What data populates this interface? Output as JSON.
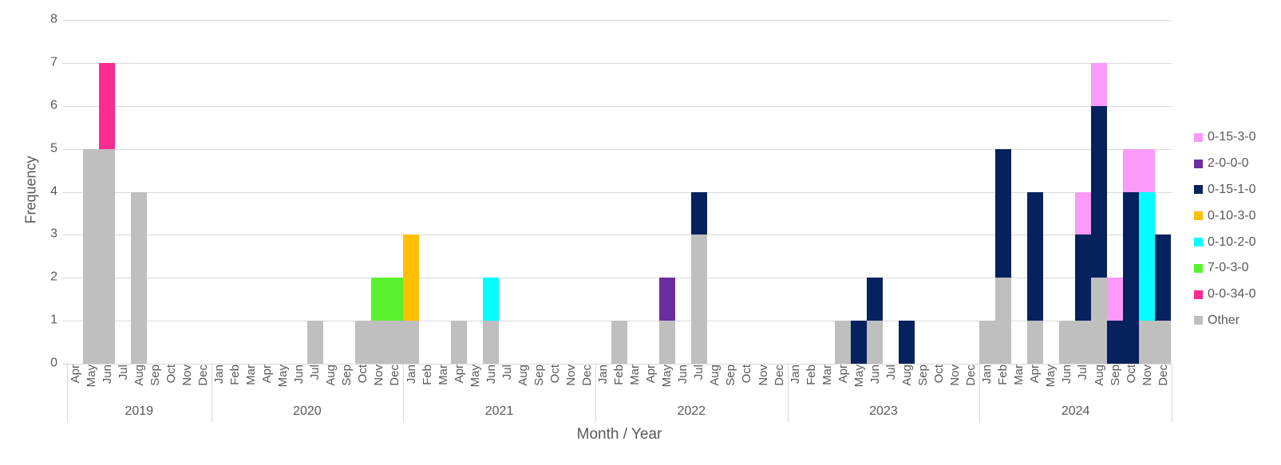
{
  "chart_data": {
    "type": "bar",
    "stacked": true,
    "title": "",
    "xlabel": "Month / Year",
    "ylabel": "Frequency",
    "ylim": [
      0,
      8
    ],
    "yticks": [
      0,
      1,
      2,
      3,
      4,
      5,
      6,
      7,
      8
    ],
    "grid": true,
    "legend_position": "right",
    "legend": [
      "0-15-3-0",
      "2-0-0-0",
      "0-15-1-0",
      "0-10-3-0",
      "0-10-2-0",
      "7-0-3-0",
      "0-0-34-0",
      "Other"
    ],
    "series_colors": {
      "0-15-3-0": "#FB9AF8",
      "2-0-0-0": "#6B2E9E",
      "0-15-1-0": "#05215E",
      "0-10-3-0": "#FFC000",
      "0-10-2-0": "#00FFFF",
      "7-0-3-0": "#5AF22E",
      "0-0-34-0": "#F92C8F",
      "Other": "#BFBFBF"
    },
    "stack_order_bottom_to_top": [
      "Other",
      "0-0-34-0",
      "7-0-3-0",
      "0-10-2-0",
      "0-10-3-0",
      "0-15-1-0",
      "2-0-0-0",
      "0-15-3-0"
    ],
    "axis_colors": {
      "gridline": "#D9D9D9",
      "text": "#595959"
    },
    "years": [
      {
        "year": "2019",
        "months": [
          "Apr",
          "May",
          "Jun",
          "Jul",
          "Aug",
          "Sep",
          "Oct",
          "Nov",
          "Dec"
        ],
        "bars": [
          [],
          [
            {
              "series": "Other",
              "value": 5
            }
          ],
          [
            {
              "series": "Other",
              "value": 5
            },
            {
              "series": "0-0-34-0",
              "value": 2
            }
          ],
          [],
          [
            {
              "series": "Other",
              "value": 4
            }
          ],
          [],
          [],
          [],
          []
        ]
      },
      {
        "year": "2020",
        "months": [
          "Jan",
          "Feb",
          "Mar",
          "Apr",
          "May",
          "Jun",
          "Jul",
          "Aug",
          "Sep",
          "Oct",
          "Nov",
          "Dec"
        ],
        "bars": [
          [],
          [],
          [],
          [],
          [],
          [],
          [
            {
              "series": "Other",
              "value": 1
            }
          ],
          [],
          [],
          [
            {
              "series": "Other",
              "value": 1
            }
          ],
          [
            {
              "series": "Other",
              "value": 1
            },
            {
              "series": "7-0-3-0",
              "value": 1
            }
          ],
          [
            {
              "series": "Other",
              "value": 1
            },
            {
              "series": "7-0-3-0",
              "value": 1
            }
          ]
        ]
      },
      {
        "year": "2021",
        "months": [
          "Jan",
          "Feb",
          "Mar",
          "Apr",
          "May",
          "Jun",
          "Jul",
          "Aug",
          "Sep",
          "Oct",
          "Nov",
          "Dec"
        ],
        "bars": [
          [
            {
              "series": "Other",
              "value": 1
            },
            {
              "series": "0-10-3-0",
              "value": 2
            }
          ],
          [],
          [],
          [
            {
              "series": "Other",
              "value": 1
            }
          ],
          [],
          [
            {
              "series": "Other",
              "value": 1
            },
            {
              "series": "0-10-2-0",
              "value": 1
            }
          ],
          [],
          [],
          [],
          [],
          [],
          []
        ]
      },
      {
        "year": "2022",
        "months": [
          "Jan",
          "Feb",
          "Mar",
          "Apr",
          "May",
          "Jun",
          "Jul",
          "Aug",
          "Sep",
          "Oct",
          "Nov",
          "Dec"
        ],
        "bars": [
          [],
          [
            {
              "series": "Other",
              "value": 1
            }
          ],
          [],
          [],
          [
            {
              "series": "Other",
              "value": 1
            },
            {
              "series": "2-0-0-0",
              "value": 1
            }
          ],
          [],
          [
            {
              "series": "Other",
              "value": 3
            },
            {
              "series": "0-15-1-0",
              "value": 1
            }
          ],
          [],
          [],
          [],
          [],
          []
        ]
      },
      {
        "year": "2023",
        "months": [
          "Jan",
          "Feb",
          "Mar",
          "Apr",
          "May",
          "Jun",
          "Jul",
          "Aug",
          "Sep",
          "Oct",
          "Nov",
          "Dec"
        ],
        "bars": [
          [],
          [],
          [],
          [
            {
              "series": "Other",
              "value": 1
            }
          ],
          [
            {
              "series": "0-15-1-0",
              "value": 1
            }
          ],
          [
            {
              "series": "Other",
              "value": 1
            },
            {
              "series": "0-15-1-0",
              "value": 1
            }
          ],
          [],
          [
            {
              "series": "0-15-1-0",
              "value": 1
            }
          ],
          [],
          [],
          [],
          []
        ]
      },
      {
        "year": "2024",
        "months": [
          "Jan",
          "Feb",
          "Mar",
          "Apr",
          "May",
          "Jun",
          "Jul",
          "Aug",
          "Sep",
          "Oct",
          "Nov",
          "Dec"
        ],
        "bars": [
          [
            {
              "series": "Other",
              "value": 1
            }
          ],
          [
            {
              "series": "Other",
              "value": 2
            },
            {
              "series": "0-15-1-0",
              "value": 3
            }
          ],
          [],
          [
            {
              "series": "Other",
              "value": 1
            },
            {
              "series": "0-15-1-0",
              "value": 3
            }
          ],
          [],
          [
            {
              "series": "Other",
              "value": 1
            }
          ],
          [
            {
              "series": "Other",
              "value": 1
            },
            {
              "series": "0-15-1-0",
              "value": 2
            },
            {
              "series": "0-15-3-0",
              "value": 1
            }
          ],
          [
            {
              "series": "Other",
              "value": 2
            },
            {
              "series": "0-15-1-0",
              "value": 4
            },
            {
              "series": "0-15-3-0",
              "value": 1
            }
          ],
          [
            {
              "series": "0-15-1-0",
              "value": 1
            },
            {
              "series": "0-15-3-0",
              "value": 1
            }
          ],
          [
            {
              "series": "0-15-1-0",
              "value": 4
            },
            {
              "series": "0-15-3-0",
              "value": 1
            }
          ],
          [
            {
              "series": "Other",
              "value": 1
            },
            {
              "series": "0-10-2-0",
              "value": 3
            },
            {
              "series": "0-15-3-0",
              "value": 1
            }
          ],
          [
            {
              "series": "Other",
              "value": 1
            },
            {
              "series": "0-15-1-0",
              "value": 2
            }
          ]
        ]
      }
    ]
  }
}
